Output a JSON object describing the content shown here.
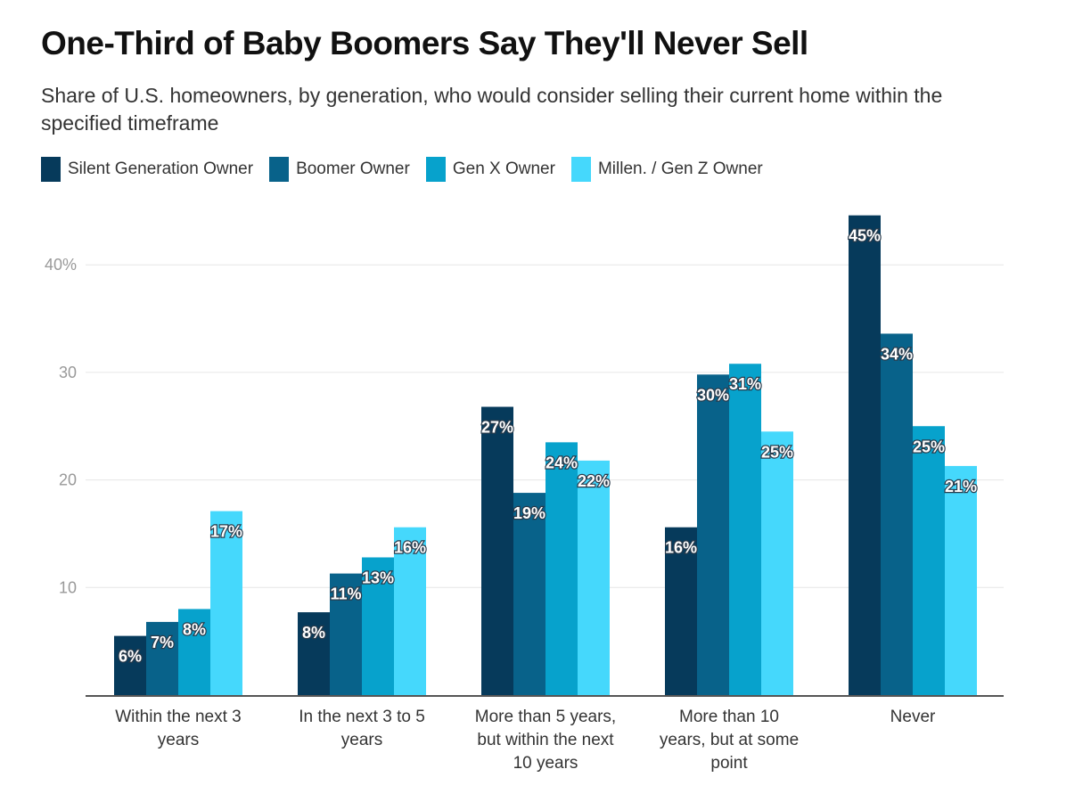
{
  "chart_data": {
    "type": "bar",
    "title": "One-Third of Baby Boomers Say They'll Never Sell",
    "subtitle": "Share of U.S. homeowners, by generation, who would consider selling their current home within the specified timeframe",
    "xlabel": "",
    "ylabel": "",
    "ylim": [
      0,
      45
    ],
    "yticks": [
      10,
      20,
      30,
      40
    ],
    "ytick_labels": [
      "10",
      "20",
      "30",
      "40%"
    ],
    "grid": true,
    "legend_position": "top-left",
    "categories": [
      [
        "Within the next 3",
        "years"
      ],
      [
        "In the next 3 to 5",
        "years"
      ],
      [
        "More than 5 years,",
        "but within the next",
        "10 years"
      ],
      [
        "More than 10",
        "years, but at some",
        "point"
      ],
      [
        "Never"
      ]
    ],
    "series": [
      {
        "name": "Silent Generation Owner",
        "color": "#063a5b",
        "values": [
          5.5,
          7.7,
          26.8,
          15.6,
          44.6
        ],
        "labels": [
          "6%",
          "8%",
          "27%",
          "16%",
          "45%"
        ]
      },
      {
        "name": "Boomer Owner",
        "color": "#08628a",
        "values": [
          6.8,
          11.3,
          18.8,
          29.8,
          33.6
        ],
        "labels": [
          "7%",
          "11%",
          "19%",
          "30%",
          "34%"
        ]
      },
      {
        "name": "Gen X Owner",
        "color": "#07a2cc",
        "values": [
          8.0,
          12.8,
          23.5,
          30.8,
          25.0
        ],
        "labels": [
          "8%",
          "13%",
          "24%",
          "31%",
          "25%"
        ]
      },
      {
        "name": "Millen. / Gen Z Owner",
        "color": "#45d8fc",
        "values": [
          17.1,
          15.6,
          21.8,
          24.5,
          21.3
        ],
        "labels": [
          "17%",
          "16%",
          "22%",
          "25%",
          "21%"
        ]
      }
    ]
  }
}
